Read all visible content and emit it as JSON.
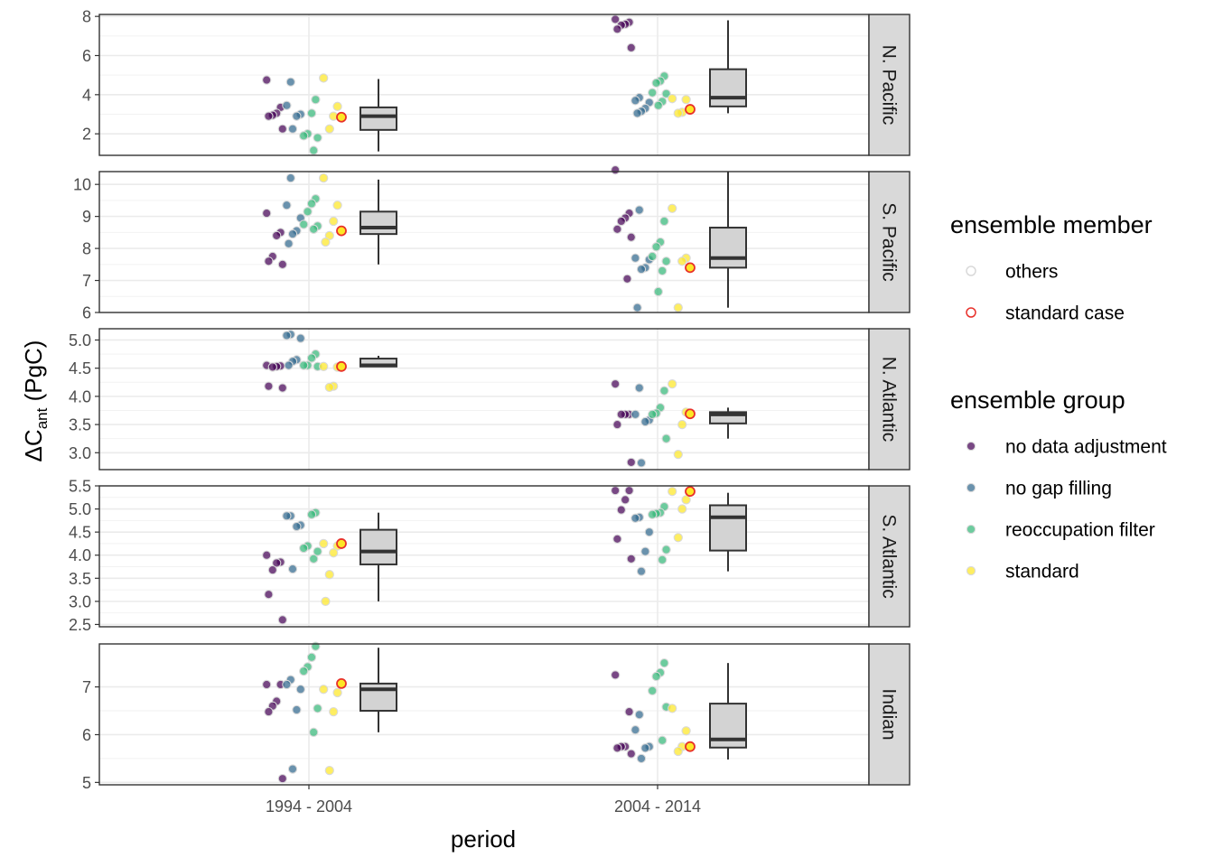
{
  "chart_data": {
    "type": "scatter",
    "xlabel": "period",
    "ylabel": "ΔCant (PgC)",
    "ylabel_parts": {
      "main": "ΔC",
      "subscript": "ant",
      "rest": " (PgC)"
    },
    "categories": [
      "1994 - 2004",
      "2004 - 2014"
    ],
    "grid": true,
    "legend_placement": "right",
    "legends": [
      {
        "title": "ensemble member",
        "kind": "outline",
        "entries": [
          {
            "label": "others",
            "color": "#d9d9d9"
          },
          {
            "label": "standard case",
            "color": "#e8302a"
          }
        ]
      },
      {
        "title": "ensemble group",
        "kind": "fill",
        "entries": [
          {
            "label": "no data adjustment",
            "color": "#440154"
          },
          {
            "label": "no gap filling",
            "color": "#31688e"
          },
          {
            "label": "reoccupation filter",
            "color": "#35b779"
          },
          {
            "label": "standard",
            "color": "#fde725"
          }
        ]
      }
    ],
    "panels": [
      {
        "name": "N. Pacific",
        "ylim": [
          0.9,
          8.1
        ],
        "yticks": [
          2,
          4,
          6,
          8
        ],
        "ytick_labels": [
          "2",
          "4",
          "6",
          "8"
        ],
        "boxes": [
          {
            "min": 1.1,
            "q1": 2.2,
            "median": 2.9,
            "q3": 3.35,
            "max": 4.8
          },
          {
            "min": 3.05,
            "q1": 3.4,
            "median": 3.85,
            "q3": 5.3,
            "max": 7.8
          }
        ],
        "points": [
          [
            {
              "g": "no data adjustment",
              "v": [
                4.75,
                3.35,
                3.05,
                2.95,
                2.9,
                2.25
              ]
            },
            {
              "g": "no gap filling",
              "v": [
                4.65,
                3.45,
                3.0,
                2.9,
                2.25
              ]
            },
            {
              "g": "reoccupation filter",
              "v": [
                3.75,
                3.05,
                2.0,
                1.9,
                1.8,
                1.15
              ]
            },
            {
              "g": "standard",
              "v": [
                4.85,
                3.4,
                2.9,
                2.25
              ],
              "std": 2.85
            }
          ],
          [
            {
              "g": "no data adjustment",
              "v": [
                7.85,
                7.7,
                7.6,
                7.55,
                7.35,
                6.4
              ]
            },
            {
              "g": "no gap filling",
              "v": [
                3.85,
                3.7,
                3.6,
                3.3,
                3.15,
                3.05
              ]
            },
            {
              "g": "reoccupation filter",
              "v": [
                4.95,
                4.7,
                4.6,
                4.1,
                4.05,
                3.65,
                3.45
              ]
            },
            {
              "g": "standard",
              "v": [
                3.8,
                3.75,
                3.1,
                3.05
              ],
              "std": 3.25
            }
          ]
        ]
      },
      {
        "name": "S. Pacific",
        "ylim": [
          6.0,
          10.4
        ],
        "yticks": [
          6,
          7,
          8,
          9,
          10
        ],
        "ytick_labels": [
          "6",
          "7",
          "8",
          "9",
          "10"
        ],
        "boxes": [
          {
            "min": 7.5,
            "q1": 8.45,
            "median": 8.65,
            "q3": 9.15,
            "max": 10.15
          },
          {
            "min": 6.15,
            "q1": 7.4,
            "median": 7.7,
            "q3": 8.65,
            "max": 10.4
          }
        ],
        "points": [
          [
            {
              "g": "no data adjustment",
              "v": [
                9.1,
                8.5,
                8.4,
                7.75,
                7.6,
                7.5
              ]
            },
            {
              "g": "no gap filling",
              "v": [
                10.2,
                9.35,
                8.95,
                8.55,
                8.45,
                8.15
              ]
            },
            {
              "g": "reoccupation filter",
              "v": [
                9.55,
                9.4,
                9.15,
                8.75,
                8.7,
                8.6
              ]
            },
            {
              "g": "standard",
              "v": [
                10.2,
                9.35,
                8.85,
                8.4,
                8.2
              ],
              "std": 8.55
            }
          ],
          [
            {
              "g": "no data adjustment",
              "v": [
                10.45,
                9.1,
                8.95,
                8.85,
                8.6,
                8.35,
                7.05
              ]
            },
            {
              "g": "no gap filling",
              "v": [
                9.2,
                7.7,
                7.65,
                7.4,
                7.35,
                6.15
              ]
            },
            {
              "g": "reoccupation filter",
              "v": [
                8.85,
                8.2,
                8.05,
                7.75,
                7.6,
                7.3,
                6.65
              ]
            },
            {
              "g": "standard",
              "v": [
                9.25,
                7.7,
                7.6,
                6.15
              ],
              "std": 7.4
            }
          ]
        ]
      },
      {
        "name": "N. Atlantic",
        "ylim": [
          2.7,
          5.2
        ],
        "yticks": [
          3.0,
          3.5,
          4.0,
          4.5,
          5.0
        ],
        "ytick_labels": [
          "3.0",
          "3.5",
          "4.0",
          "4.5",
          "5.0"
        ],
        "boxes": [
          {
            "min": 4.52,
            "q1": 4.53,
            "median": 4.55,
            "q3": 4.67,
            "max": 4.72
          },
          {
            "min": 3.25,
            "q1": 3.52,
            "median": 3.68,
            "q3": 3.72,
            "max": 3.8
          }
        ],
        "points": [
          [
            {
              "g": "no data adjustment",
              "v": [
                4.55,
                4.54,
                4.53,
                4.52,
                4.18,
                4.15
              ]
            },
            {
              "g": "no gap filling",
              "v": [
                5.1,
                5.08,
                5.03,
                4.65,
                4.62,
                4.55
              ]
            },
            {
              "g": "reoccupation filter",
              "v": [
                4.75,
                4.68,
                4.55,
                4.55,
                4.53
              ]
            },
            {
              "g": "standard",
              "v": [
                4.53,
                4.52,
                4.18,
                4.16
              ],
              "std": 4.53
            }
          ],
          [
            {
              "g": "no data adjustment",
              "v": [
                4.22,
                3.68,
                3.68,
                3.68,
                3.5,
                2.83
              ]
            },
            {
              "g": "no gap filling",
              "v": [
                4.15,
                3.68,
                3.58,
                3.55,
                2.82
              ]
            },
            {
              "g": "reoccupation filter",
              "v": [
                4.1,
                3.8,
                3.7,
                3.68,
                3.25
              ]
            },
            {
              "g": "standard",
              "v": [
                4.22,
                3.72,
                3.5,
                2.97
              ],
              "std": 3.69
            }
          ]
        ]
      },
      {
        "name": "S. Atlantic",
        "ylim": [
          2.45,
          5.5
        ],
        "yticks": [
          2.5,
          3.0,
          3.5,
          4.0,
          4.5,
          5.0,
          5.5
        ],
        "ytick_labels": [
          "2.5",
          "3.0",
          "3.5",
          "4.0",
          "4.5",
          "5.0",
          "5.5"
        ],
        "boxes": [
          {
            "min": 3.0,
            "q1": 3.8,
            "median": 4.08,
            "q3": 4.55,
            "max": 4.92
          },
          {
            "min": 3.65,
            "q1": 4.1,
            "median": 4.82,
            "q3": 5.08,
            "max": 5.35
          }
        ],
        "points": [
          [
            {
              "g": "no data adjustment",
              "v": [
                4.0,
                3.85,
                3.83,
                3.68,
                3.15,
                2.6
              ]
            },
            {
              "g": "no gap filling",
              "v": [
                4.85,
                4.85,
                4.65,
                4.62,
                3.7
              ]
            },
            {
              "g": "reoccupation filter",
              "v": [
                4.92,
                4.88,
                4.2,
                4.15,
                4.08,
                3.92
              ]
            },
            {
              "g": "standard",
              "v": [
                4.25,
                4.2,
                4.05,
                3.58,
                3.0
              ],
              "std": 4.25
            }
          ],
          [
            {
              "g": "no data adjustment",
              "v": [
                5.4,
                5.4,
                5.2,
                4.98,
                4.35,
                3.92
              ]
            },
            {
              "g": "no gap filling",
              "v": [
                4.82,
                4.8,
                4.5,
                4.08,
                3.65
              ]
            },
            {
              "g": "reoccupation filter",
              "v": [
                5.05,
                4.92,
                4.9,
                4.88,
                4.12,
                3.9
              ]
            },
            {
              "g": "standard",
              "v": [
                5.38,
                5.2,
                5.0,
                4.38
              ],
              "std": 5.38
            }
          ]
        ]
      },
      {
        "name": "Indian",
        "ylim": [
          4.95,
          7.9
        ],
        "yticks": [
          5,
          6,
          7
        ],
        "ytick_labels": [
          "5",
          "6",
          "7"
        ],
        "boxes": [
          {
            "min": 6.05,
            "q1": 6.5,
            "median": 6.95,
            "q3": 7.07,
            "max": 7.82
          },
          {
            "min": 5.48,
            "q1": 5.73,
            "median": 5.9,
            "q3": 6.65,
            "max": 7.5
          }
        ],
        "points": [
          [
            {
              "g": "no data adjustment",
              "v": [
                7.05,
                7.05,
                6.7,
                6.6,
                6.48,
                5.08
              ]
            },
            {
              "g": "no gap filling",
              "v": [
                7.15,
                7.05,
                6.95,
                6.52,
                5.28
              ]
            },
            {
              "g": "reoccupation filter",
              "v": [
                7.85,
                7.62,
                7.42,
                7.33,
                6.55,
                6.05
              ]
            },
            {
              "g": "standard",
              "v": [
                6.95,
                6.88,
                6.48,
                5.25
              ],
              "std": 7.07
            }
          ],
          [
            {
              "g": "no data adjustment",
              "v": [
                7.25,
                6.48,
                5.75,
                5.75,
                5.72,
                5.6
              ]
            },
            {
              "g": "no gap filling",
              "v": [
                6.42,
                6.1,
                5.75,
                5.72,
                5.5
              ]
            },
            {
              "g": "reoccupation filter",
              "v": [
                7.5,
                7.3,
                7.22,
                6.92,
                6.58,
                5.88
              ]
            },
            {
              "g": "standard",
              "v": [
                6.55,
                6.08,
                5.75,
                5.65
              ],
              "std": 5.75
            }
          ]
        ]
      }
    ]
  }
}
